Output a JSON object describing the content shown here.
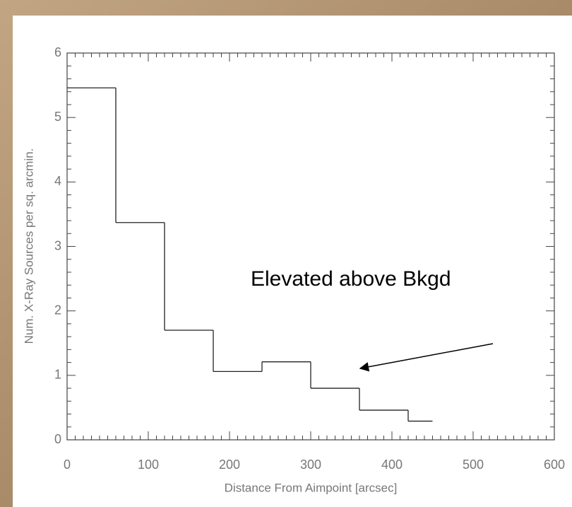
{
  "chart_data": {
    "type": "histogram",
    "xlabel": "Distance From Aimpoint [arcsec]",
    "ylabel": "Num. X-Ray Sources per sq. arcmin.",
    "bins": [
      0,
      60,
      120,
      180,
      240,
      300,
      360,
      420,
      450
    ],
    "values": [
      5.46,
      3.37,
      1.7,
      1.06,
      1.21,
      0.8,
      0.46,
      0.29
    ],
    "color": "#222222",
    "xlim": [
      0,
      600
    ],
    "xticks": [
      0,
      100,
      200,
      300,
      400,
      500,
      600
    ],
    "ylim": [
      0,
      6
    ],
    "yticks": [
      0,
      1,
      2,
      3,
      4,
      5,
      6
    ],
    "annotation": "Elevated above Bkgd"
  }
}
